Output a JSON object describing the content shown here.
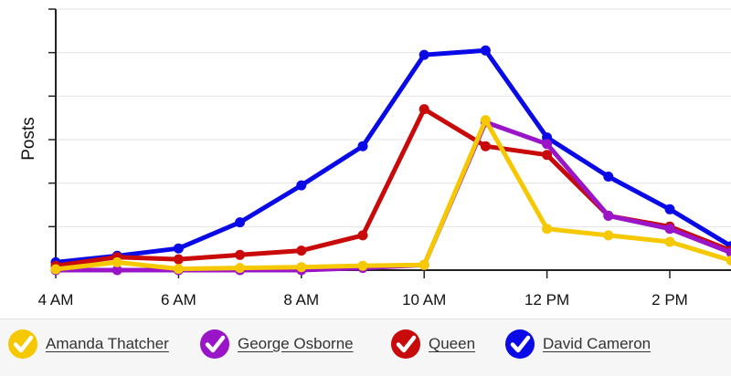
{
  "chart_data": {
    "type": "line",
    "title": "",
    "ylabel": "Posts",
    "xlabel": "",
    "x": [
      4,
      5,
      6,
      7,
      8,
      9,
      10,
      11,
      12,
      13,
      14,
      15
    ],
    "x_tick_values": [
      4,
      6,
      8,
      10,
      12,
      14
    ],
    "x_tick_labels": [
      "4 AM",
      "6 AM",
      "8 AM",
      "10 AM",
      "12 PM",
      "2 PM"
    ],
    "xlim": [
      4,
      15
    ],
    "ylim": [
      0,
      60
    ],
    "y_tick_values": [
      0,
      10,
      20,
      30,
      40,
      50,
      60
    ],
    "y_tick_labels_shown": false,
    "grid": "horizontal",
    "legend_position": "bottom",
    "series": [
      {
        "name": "David Cameron",
        "color": "#0a0ae6",
        "values": [
          1.8,
          3.3,
          5,
          11,
          19.5,
          28.5,
          49.5,
          50.5,
          30.5,
          21.5,
          14,
          5.5
        ]
      },
      {
        "name": "Queen",
        "color": "#c80a0a",
        "values": [
          1,
          3,
          2.5,
          3.5,
          4.5,
          8,
          37,
          28.5,
          26.5,
          12.5,
          10,
          4.5
        ]
      },
      {
        "name": "George Osborne",
        "color": "#9a14c8",
        "values": [
          0,
          0,
          0,
          0,
          0,
          0.5,
          1.2,
          34,
          29,
          12.5,
          9.5,
          4
        ]
      },
      {
        "name": "Amanda Thatcher",
        "color": "#f5c800",
        "values": [
          0.2,
          1.8,
          0.3,
          0.5,
          0.7,
          1,
          1.2,
          34.5,
          9.5,
          8,
          6.5,
          2.2
        ]
      }
    ]
  },
  "legend": [
    {
      "label": "Amanda Thatcher",
      "color": "#f5c800"
    },
    {
      "label": "George Osborne",
      "color": "#9a14c8"
    },
    {
      "label": "Queen",
      "color": "#c80a0a"
    },
    {
      "label": "David Cameron",
      "color": "#0a0ae6"
    }
  ]
}
